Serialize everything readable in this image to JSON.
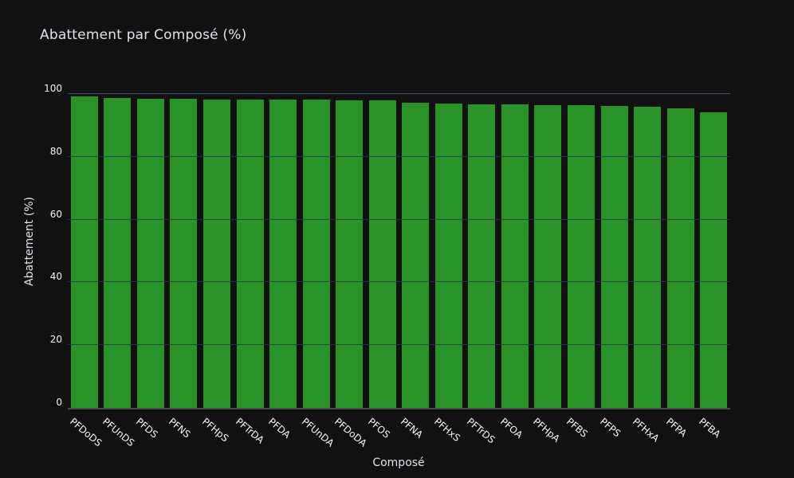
{
  "colors": {
    "background": "#111111",
    "bar": "#2a9328",
    "grid": "#2a3750",
    "grid_top": "#3c5070",
    "axis_line": "#444b57",
    "text": "#f2f5fa",
    "title_text": "#dde3ec"
  },
  "chart_data": {
    "type": "bar",
    "title": "Abattement par Composé (%)",
    "xlabel": "Composé",
    "ylabel": "Abattement (%)",
    "categories": [
      "PFDoDS",
      "PFUnDS",
      "PFDS",
      "PFNS",
      "PFHpS",
      "PFTrDA",
      "PFDA",
      "PFUnDA",
      "PFDoDA",
      "PFOS",
      "PFNA",
      "PFHxS",
      "PFTrDS",
      "PFOA",
      "PFHpA",
      "PFBS",
      "PFPS",
      "PFHxA",
      "PFPA",
      "PFBA"
    ],
    "values": [
      99.3,
      98.8,
      98.5,
      98.4,
      98.3,
      98.3,
      98.2,
      98.2,
      98.1,
      98.0,
      97.3,
      97.0,
      96.8,
      96.6,
      96.5,
      96.4,
      96.1,
      96.0,
      95.4,
      94.2
    ],
    "ylim": [
      0,
      100
    ],
    "yticks": [
      0,
      20,
      40,
      60,
      80,
      100
    ],
    "grid": true,
    "legend": "none",
    "x_tick_angle": 40,
    "bar_color": "#2a9328"
  }
}
